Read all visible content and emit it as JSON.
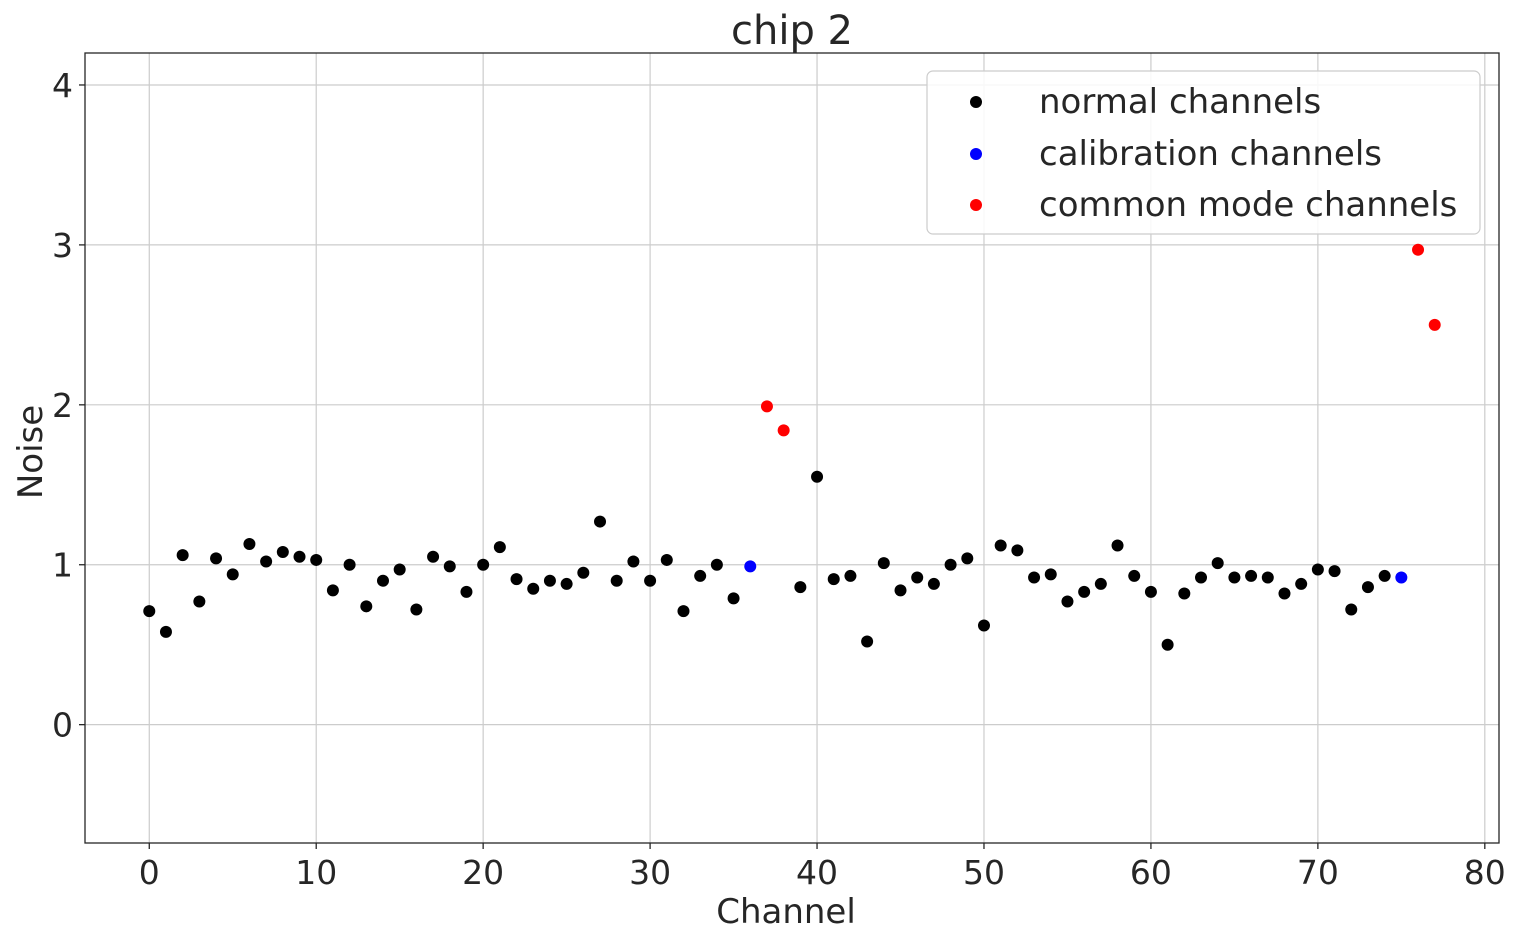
{
  "chart_data": {
    "type": "scatter",
    "title": "chip 2",
    "xlabel": "Channel",
    "ylabel": "Noise",
    "xlim": [
      -3.85,
      80.85
    ],
    "ylim": [
      -0.74,
      4.2
    ],
    "xticks": [
      0,
      10,
      20,
      30,
      40,
      50,
      60,
      70,
      80
    ],
    "yticks": [
      0,
      1,
      2,
      3,
      4
    ],
    "grid": true,
    "legend_position": "top-right",
    "series": [
      {
        "name": "normal channels",
        "color": "#000000",
        "x": [
          0,
          1,
          2,
          3,
          4,
          5,
          6,
          7,
          8,
          9,
          10,
          11,
          12,
          13,
          14,
          15,
          16,
          17,
          18,
          19,
          20,
          21,
          22,
          23,
          24,
          25,
          26,
          27,
          28,
          29,
          30,
          31,
          32,
          33,
          34,
          35,
          39,
          40,
          41,
          42,
          43,
          44,
          45,
          46,
          47,
          48,
          49,
          50,
          51,
          52,
          53,
          54,
          55,
          56,
          57,
          58,
          59,
          60,
          61,
          62,
          63,
          64,
          65,
          66,
          67,
          68,
          69,
          70,
          71,
          72,
          73,
          74
        ],
        "y": [
          0.71,
          0.58,
          1.06,
          0.77,
          1.04,
          0.94,
          1.13,
          1.02,
          1.08,
          1.05,
          1.03,
          0.84,
          1.0,
          0.74,
          0.9,
          0.97,
          0.72,
          1.05,
          0.99,
          0.83,
          1.0,
          1.11,
          0.91,
          0.85,
          0.9,
          0.88,
          0.95,
          1.27,
          0.9,
          1.02,
          0.9,
          1.03,
          0.71,
          0.93,
          1.0,
          0.79,
          0.86,
          1.55,
          0.91,
          0.93,
          0.52,
          1.01,
          0.84,
          0.92,
          0.88,
          1.0,
          1.04,
          0.62,
          1.12,
          1.09,
          0.92,
          0.94,
          0.77,
          0.83,
          0.88,
          1.12,
          0.93,
          0.83,
          0.5,
          0.82,
          0.92,
          1.01,
          0.92,
          0.93,
          0.92,
          0.82,
          0.88,
          0.97,
          0.96,
          0.72,
          0.86,
          0.93
        ]
      },
      {
        "name": "calibration channels",
        "color": "#0000ff",
        "x": [
          36,
          75
        ],
        "y": [
          0.99,
          0.92
        ]
      },
      {
        "name": "common mode channels",
        "color": "#ff0000",
        "x": [
          37,
          38,
          76,
          77
        ],
        "y": [
          1.99,
          1.84,
          2.97,
          2.5
        ]
      }
    ]
  }
}
